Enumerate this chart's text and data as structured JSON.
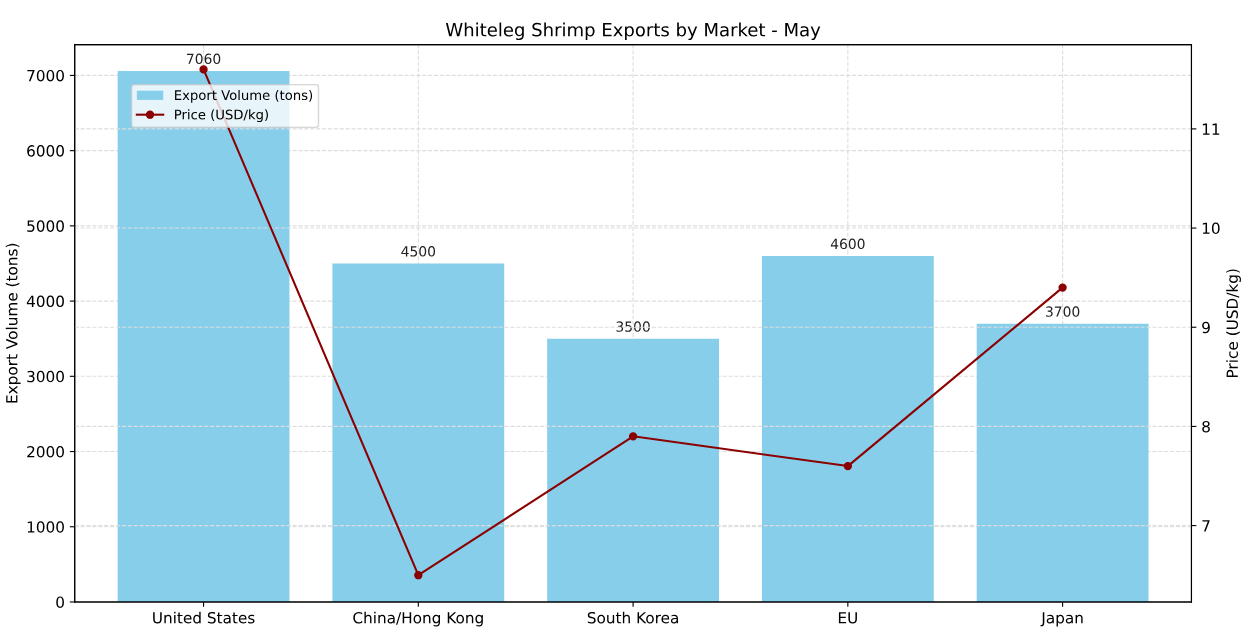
{
  "chart_data": {
    "type": "bar",
    "title": "Whiteleg Shrimp Exports by Market - May",
    "categories": [
      "United States",
      "China/Hong Kong",
      "South Korea",
      "EU",
      "Japan"
    ],
    "ylabel": "Export Volume (tons)",
    "y2label": "Price (USD/kg)",
    "series": [
      {
        "name": "Export Volume (tons)",
        "color": "#87ceeb",
        "values": [
          7060,
          4500,
          3500,
          4600,
          3700
        ],
        "value_labels": [
          "7060",
          "4500",
          "3500",
          "4600",
          "3700"
        ]
      },
      {
        "name": "Price (USD/kg)",
        "type": "line",
        "axis": "y2",
        "color": "#8b0000",
        "values": [
          11.6,
          6.5,
          7.9,
          7.6,
          9.4
        ]
      }
    ],
    "ylim": [
      0,
      7410
    ],
    "yticks": [
      0,
      1000,
      2000,
      3000,
      4000,
      5000,
      6000,
      7000
    ],
    "y2lim": [
      6.23,
      11.85
    ],
    "y2ticks": [
      7,
      8,
      9,
      10,
      11
    ],
    "grid": true,
    "legend": "top left",
    "marker": "circle",
    "line_style": "solid"
  }
}
